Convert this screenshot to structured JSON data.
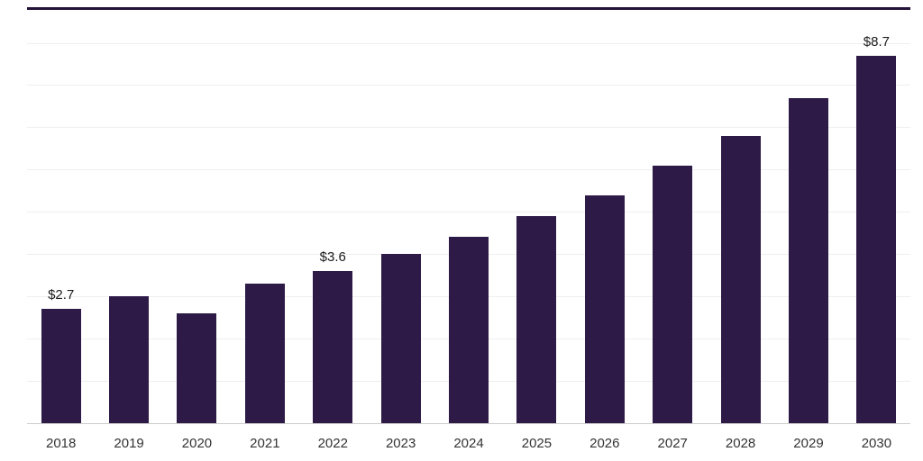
{
  "chart_data": {
    "type": "bar",
    "title": "",
    "xlabel": "",
    "ylabel": "",
    "categories": [
      "2018",
      "2019",
      "2020",
      "2021",
      "2022",
      "2023",
      "2024",
      "2025",
      "2026",
      "2027",
      "2028",
      "2029",
      "2030"
    ],
    "values": [
      2.7,
      3.0,
      2.6,
      3.3,
      3.6,
      4.0,
      4.4,
      4.9,
      5.4,
      6.1,
      6.8,
      7.7,
      8.7
    ],
    "data_labels": [
      "$2.7",
      null,
      null,
      null,
      "$3.6",
      null,
      null,
      null,
      null,
      null,
      null,
      null,
      "$8.7"
    ],
    "ylim": [
      0,
      9.8
    ],
    "gridline_step": 1,
    "grid_on": true,
    "legend": "none"
  },
  "colors": {
    "bar": "#2e1a47",
    "grid": "#efefef",
    "axis": "#cccccc",
    "top_rule": "#241239",
    "label_text": "#1a1a1a",
    "tick_text": "#333333"
  }
}
